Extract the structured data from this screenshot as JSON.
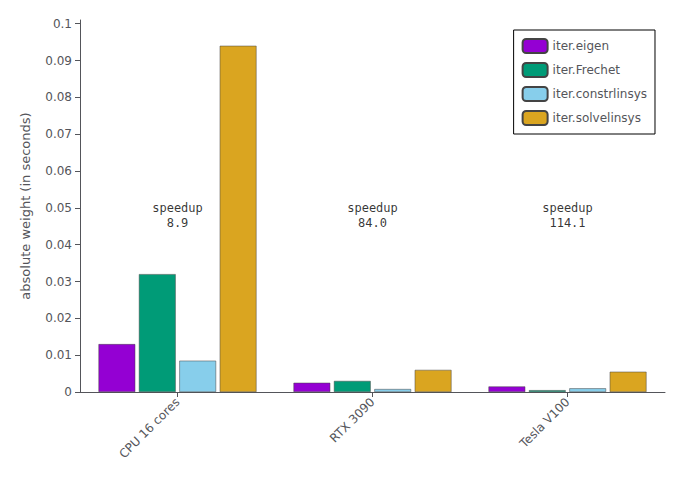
{
  "chart_data": {
    "type": "bar",
    "categories": [
      "CPU 16 cores",
      "RTX 3090",
      "Tesla V100"
    ],
    "series": [
      {
        "name": "iter.eigen",
        "color": "#9400D3",
        "values": [
          0.013,
          0.0025,
          0.0015
        ]
      },
      {
        "name": "iter.Frechet",
        "color": "#009B77",
        "values": [
          0.032,
          0.003,
          0.0005
        ]
      },
      {
        "name": "iter.constrlinsys",
        "color": "#87CEEB",
        "values": [
          0.0085,
          0.0008,
          0.001
        ]
      },
      {
        "name": "iter.solvelinsys",
        "color": "#DAA520",
        "values": [
          0.094,
          0.006,
          0.0055
        ]
      }
    ],
    "ylabel": "absolute weight (in seconds)",
    "ylim": [
      0,
      0.101
    ],
    "yticks": [
      0,
      0.01,
      0.02,
      0.03,
      0.04,
      0.05,
      0.06,
      0.07,
      0.08,
      0.09,
      0.1
    ],
    "grid": false,
    "legend": "upper right",
    "annotations": [
      {
        "category": "CPU 16 cores",
        "y": 0.048,
        "text": "speedup\n8.9"
      },
      {
        "category": "RTX 3090",
        "y": 0.048,
        "text": "speedup\n84.0"
      },
      {
        "category": "Tesla V100",
        "y": 0.048,
        "text": "speedup\n114.1"
      }
    ]
  }
}
